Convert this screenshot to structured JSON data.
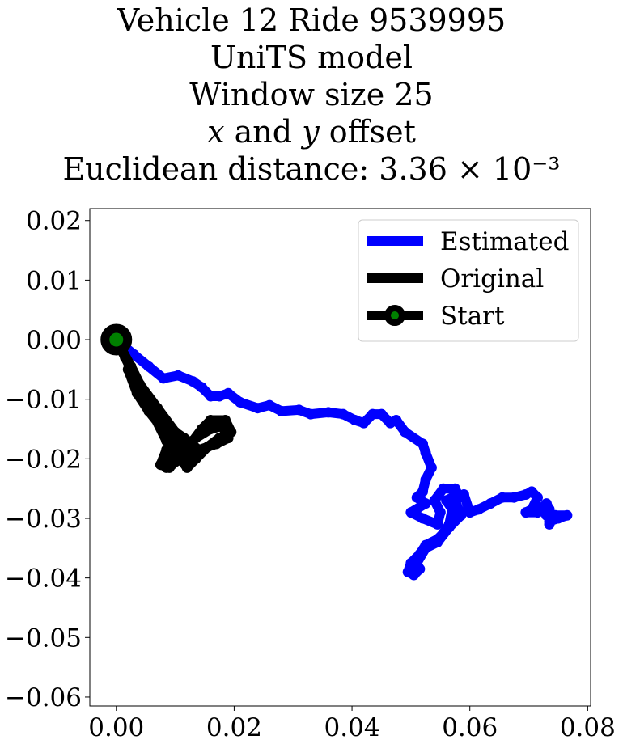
{
  "chart_data": {
    "type": "line",
    "title_lines": [
      "Vehicle 12 Ride 9539995",
      "UniTS model",
      "Window size 25",
      "x and y offset",
      "Euclidean distance: 3.36 × 10⁻³"
    ],
    "xlabel": "",
    "ylabel": "",
    "xlim": [
      -0.0045,
      0.0805
    ],
    "ylim": [
      -0.0615,
      0.022
    ],
    "xticks": [
      0.0,
      0.02,
      0.04,
      0.06,
      0.08
    ],
    "xtick_labels": [
      "0.00",
      "0.02",
      "0.04",
      "0.06",
      "0.08"
    ],
    "yticks": [
      0.02,
      0.01,
      0.0,
      -0.01,
      -0.02,
      -0.03,
      -0.04,
      -0.05,
      -0.06
    ],
    "ytick_labels": [
      "0.02",
      "0.01",
      "0.00",
      "−0.01",
      "−0.02",
      "−0.03",
      "−0.04",
      "−0.05",
      "−0.06"
    ],
    "grid": false,
    "legend_position": "top-right",
    "series": [
      {
        "name": "Estimated",
        "color": "#0000ff",
        "points": [
          [
            0.0,
            0.0
          ],
          [
            0.003,
            -0.0025
          ],
          [
            0.0055,
            -0.0045
          ],
          [
            0.008,
            -0.0065
          ],
          [
            0.0105,
            -0.006
          ],
          [
            0.013,
            -0.007
          ],
          [
            0.0145,
            -0.008
          ],
          [
            0.016,
            -0.0095
          ],
          [
            0.0175,
            -0.0095
          ],
          [
            0.019,
            -0.009
          ],
          [
            0.021,
            -0.0105
          ],
          [
            0.024,
            -0.0115
          ],
          [
            0.026,
            -0.011
          ],
          [
            0.028,
            -0.012
          ],
          [
            0.031,
            -0.0118
          ],
          [
            0.033,
            -0.0125
          ],
          [
            0.036,
            -0.0122
          ],
          [
            0.0385,
            -0.0125
          ],
          [
            0.0405,
            -0.0135
          ],
          [
            0.042,
            -0.014
          ],
          [
            0.0435,
            -0.0125
          ],
          [
            0.045,
            -0.0125
          ],
          [
            0.0465,
            -0.014
          ],
          [
            0.0475,
            -0.0135
          ],
          [
            0.049,
            -0.0155
          ],
          [
            0.052,
            -0.0175
          ],
          [
            0.0525,
            -0.019
          ],
          [
            0.0535,
            -0.0215
          ],
          [
            0.0525,
            -0.0235
          ],
          [
            0.052,
            -0.0255
          ],
          [
            0.051,
            -0.0265
          ],
          [
            0.0525,
            -0.0275
          ],
          [
            0.05,
            -0.029
          ],
          [
            0.052,
            -0.03
          ],
          [
            0.0545,
            -0.031
          ],
          [
            0.055,
            -0.029
          ],
          [
            0.054,
            -0.027
          ],
          [
            0.0555,
            -0.025
          ],
          [
            0.0575,
            -0.025
          ],
          [
            0.058,
            -0.026
          ],
          [
            0.056,
            -0.027
          ],
          [
            0.057,
            -0.0285
          ],
          [
            0.0565,
            -0.031
          ],
          [
            0.0555,
            -0.0325
          ],
          [
            0.0545,
            -0.0335
          ],
          [
            0.0525,
            -0.0345
          ],
          [
            0.0515,
            -0.036
          ],
          [
            0.05,
            -0.0375
          ],
          [
            0.0495,
            -0.039
          ],
          [
            0.0505,
            -0.0395
          ],
          [
            0.0515,
            -0.0385
          ],
          [
            0.051,
            -0.0375
          ],
          [
            0.0525,
            -0.035
          ],
          [
            0.0545,
            -0.034
          ],
          [
            0.0565,
            -0.0315
          ],
          [
            0.0585,
            -0.0295
          ],
          [
            0.0575,
            -0.027
          ],
          [
            0.059,
            -0.026
          ],
          [
            0.06,
            -0.029
          ],
          [
            0.0615,
            -0.0285
          ],
          [
            0.0635,
            -0.0275
          ],
          [
            0.0655,
            -0.0265
          ],
          [
            0.0675,
            -0.0265
          ],
          [
            0.0695,
            -0.026
          ],
          [
            0.0705,
            -0.0255
          ],
          [
            0.0715,
            -0.0265
          ],
          [
            0.0705,
            -0.0285
          ],
          [
            0.0695,
            -0.029
          ],
          [
            0.0715,
            -0.029
          ],
          [
            0.073,
            -0.0275
          ],
          [
            0.0735,
            -0.0285
          ],
          [
            0.073,
            -0.0295
          ],
          [
            0.0745,
            -0.0295
          ],
          [
            0.0765,
            -0.0295
          ],
          [
            0.075,
            -0.03
          ],
          [
            0.0735,
            -0.0305
          ],
          [
            0.0735,
            -0.031
          ]
        ]
      },
      {
        "name": "Original",
        "color": "#000000",
        "points": [
          [
            0.0,
            0.0
          ],
          [
            0.0015,
            -0.003
          ],
          [
            0.003,
            -0.006
          ],
          [
            0.0045,
            -0.0095
          ],
          [
            0.0065,
            -0.013
          ],
          [
            0.0085,
            -0.017
          ],
          [
            0.0105,
            -0.0195
          ],
          [
            0.012,
            -0.0215
          ],
          [
            0.0135,
            -0.02
          ],
          [
            0.0155,
            -0.018
          ],
          [
            0.0175,
            -0.0165
          ],
          [
            0.0195,
            -0.0155
          ],
          [
            0.0185,
            -0.0135
          ],
          [
            0.016,
            -0.0135
          ],
          [
            0.0145,
            -0.015
          ],
          [
            0.013,
            -0.017
          ],
          [
            0.011,
            -0.0195
          ],
          [
            0.009,
            -0.0215
          ],
          [
            0.0075,
            -0.021
          ],
          [
            0.0085,
            -0.0185
          ],
          [
            0.0095,
            -0.0175
          ],
          [
            0.0075,
            -0.0145
          ],
          [
            0.0055,
            -0.012
          ],
          [
            0.0035,
            -0.009
          ],
          [
            0.002,
            -0.005
          ],
          [
            0.004,
            -0.0075
          ],
          [
            0.007,
            -0.0115
          ],
          [
            0.01,
            -0.0155
          ],
          [
            0.0115,
            -0.0165
          ],
          [
            0.014,
            -0.0185
          ],
          [
            0.017,
            -0.0175
          ],
          [
            0.019,
            -0.0165
          ],
          [
            0.018,
            -0.0145
          ],
          [
            0.016,
            -0.015
          ],
          [
            0.0135,
            -0.0165
          ],
          [
            0.0115,
            -0.018
          ],
          [
            0.0095,
            -0.02
          ],
          [
            0.0085,
            -0.0215
          ],
          [
            0.011,
            -0.02
          ],
          [
            0.0125,
            -0.019
          ],
          [
            0.0105,
            -0.0175
          ],
          [
            0.009,
            -0.0165
          ],
          [
            0.0075,
            -0.0135
          ],
          [
            0.005,
            -0.0095
          ],
          [
            0.0025,
            -0.0045
          ],
          [
            0.0,
            0.0
          ]
        ]
      }
    ],
    "start_marker": {
      "name": "Start",
      "point": [
        0.0,
        0.0
      ],
      "edge_color": "#000000",
      "face_color": "#008000"
    }
  }
}
